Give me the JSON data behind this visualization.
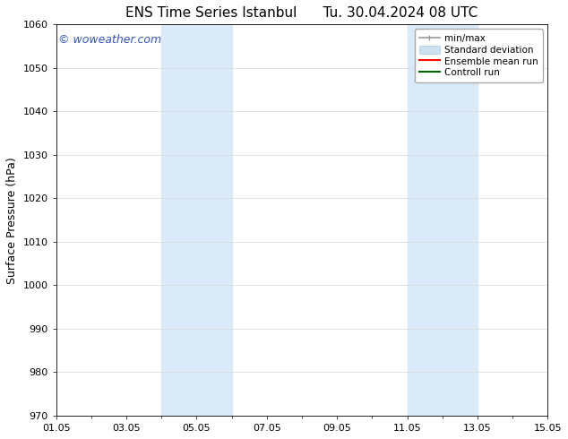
{
  "title_left": "ENS Time Series Istanbul",
  "title_right": "Tu. 30.04.2024 08 UTC",
  "ylabel": "Surface Pressure (hPa)",
  "ylim": [
    970,
    1060
  ],
  "yticks": [
    970,
    980,
    990,
    1000,
    1010,
    1020,
    1030,
    1040,
    1050,
    1060
  ],
  "xlim_start": 0,
  "xlim_end": 14,
  "xtick_labels": [
    "01.05",
    "03.05",
    "05.05",
    "07.05",
    "09.05",
    "11.05",
    "13.05",
    "15.05"
  ],
  "xtick_positions": [
    0,
    2,
    4,
    6,
    8,
    10,
    12,
    14
  ],
  "shaded_bands": [
    {
      "xstart": 3.0,
      "xend": 5.0
    },
    {
      "xstart": 10.0,
      "xend": 12.0
    }
  ],
  "shaded_color": "#daeaf8",
  "watermark_text": "© woweather.com",
  "watermark_color": "#3355bb",
  "background_color": "#ffffff",
  "legend_items": [
    {
      "label": "min/max",
      "color": "#999999",
      "lw": 1.2
    },
    {
      "label": "Standard deviation",
      "color": "#cce0f0",
      "lw": 8
    },
    {
      "label": "Ensemble mean run",
      "color": "#ff0000",
      "lw": 1.5
    },
    {
      "label": "Controll run",
      "color": "#006600",
      "lw": 1.5
    }
  ],
  "grid_color": "#dddddd",
  "spine_color": "#000000",
  "font_color": "#000000",
  "title_fontsize": 11,
  "axis_fontsize": 9,
  "tick_fontsize": 8,
  "watermark_fontsize": 9,
  "legend_fontsize": 7.5
}
